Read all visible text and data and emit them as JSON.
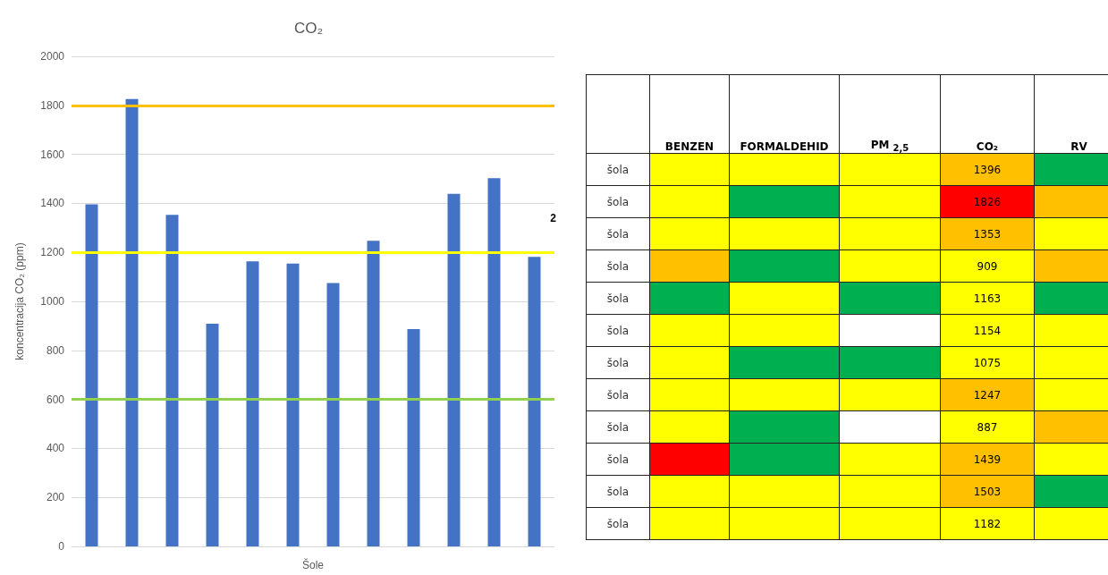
{
  "chart_data": [
    {
      "type": "bar",
      "title": "CO₂",
      "xlabel": "Šole",
      "ylabel": "koncentracija CO₂ (ppm)",
      "categories": [
        null,
        null,
        null,
        null,
        null,
        null,
        null,
        null,
        null,
        null,
        null,
        null
      ],
      "values": [
        1396,
        1826,
        1353,
        909,
        1163,
        1154,
        1075,
        1247,
        887,
        1439,
        1503,
        1182
      ],
      "color": "#4472c4",
      "ylim": [
        0,
        2000
      ],
      "yticks": [
        0,
        200,
        400,
        600,
        800,
        1000,
        1200,
        1400,
        1600,
        1800,
        2000
      ],
      "grid": "y",
      "ref_lines": [
        {
          "axis": "y",
          "value": 1800,
          "color": "#ffc000"
        },
        {
          "axis": "y",
          "value": 1200,
          "color": "#ffff00"
        },
        {
          "axis": "y",
          "value": 600,
          "color": "#92d050"
        }
      ],
      "annotations": [
        "2"
      ]
    },
    {
      "type": "other",
      "categories": [
        "BENZEN",
        "FORMALDEHID",
        "PM $_{2,5}$",
        "CO₂",
        "RV"
      ],
      "y_categories": [
        "šola",
        "šola",
        "šola",
        "šola",
        "šola",
        "šola",
        "šola",
        "šola",
        "šola",
        "šola",
        "šola",
        "šola"
      ],
      "cell_labels": [
        [
          null,
          null,
          null,
          "1396",
          null
        ],
        [
          null,
          null,
          null,
          "1826",
          null
        ],
        [
          null,
          null,
          null,
          "1353",
          null
        ],
        [
          null,
          null,
          null,
          "909",
          null
        ],
        [
          null,
          null,
          null,
          "1163",
          null
        ],
        [
          null,
          null,
          null,
          "1154",
          null
        ],
        [
          null,
          null,
          null,
          "1075",
          null
        ],
        [
          null,
          null,
          null,
          "1247",
          null
        ],
        [
          null,
          null,
          null,
          "887",
          null
        ],
        [
          null,
          null,
          null,
          "1439",
          null
        ],
        [
          null,
          null,
          null,
          "1503",
          null
        ],
        [
          null,
          null,
          null,
          "1182",
          null
        ]
      ],
      "colors": [
        [
          "#ffff00",
          "#ffff00",
          "#ffff00",
          "#ffc000",
          "#00b050"
        ],
        [
          "#ffff00",
          "#00b050",
          "#ffff00",
          "#ff0000",
          "#ffc000"
        ],
        [
          "#ffff00",
          "#ffff00",
          "#ffff00",
          "#ffc000",
          "#ffff00"
        ],
        [
          "#ffc000",
          "#00b050",
          "#ffff00",
          "#ffff00",
          "#ffc000"
        ],
        [
          "#00b050",
          "#ffff00",
          "#00b050",
          "#ffff00",
          "#00b050"
        ],
        [
          "#ffff00",
          "#ffff00",
          null,
          "#ffff00",
          "#ffff00"
        ],
        [
          "#ffff00",
          "#00b050",
          "#00b050",
          "#ffff00",
          "#ffff00"
        ],
        [
          "#ffff00",
          "#ffff00",
          "#ffff00",
          "#ffc000",
          "#ffff00"
        ],
        [
          "#ffff00",
          "#00b050",
          null,
          "#ffff00",
          "#ffc000"
        ],
        [
          "#ff0000",
          "#00b050",
          "#ffff00",
          "#ffc000",
          "#ffff00"
        ],
        [
          "#ffff00",
          "#ffff00",
          "#ffff00",
          "#ffc000",
          "#00b050"
        ],
        [
          "#ffff00",
          "#ffff00",
          "#ffff00",
          "#ffff00",
          "#ffff00"
        ]
      ]
    }
  ]
}
